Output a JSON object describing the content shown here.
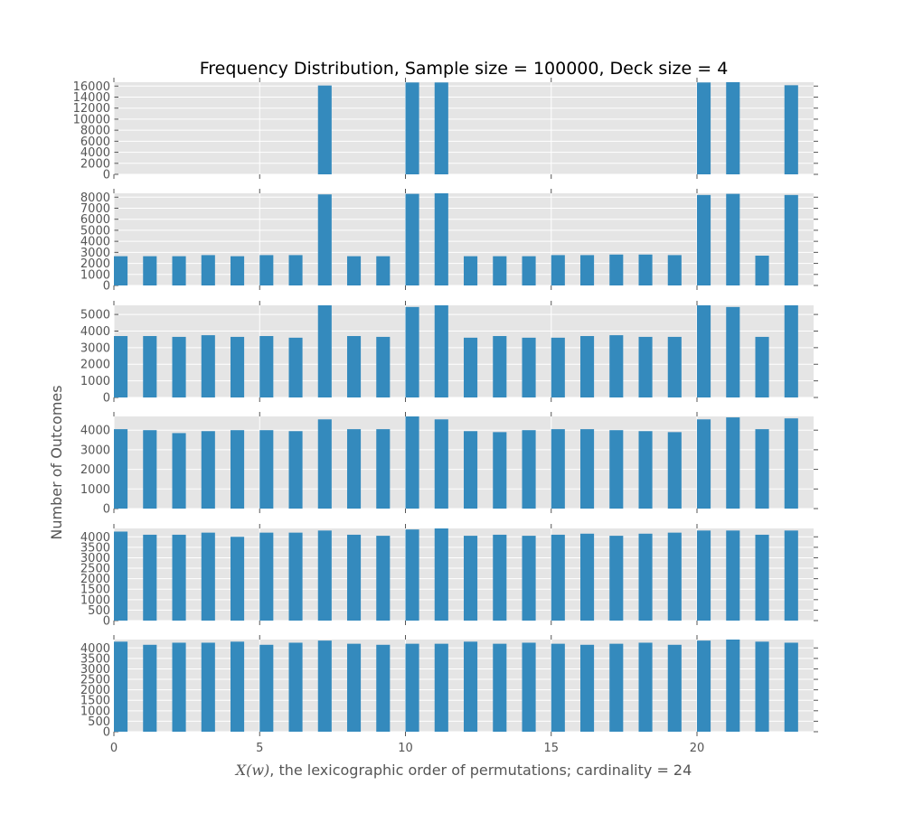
{
  "chart_data": {
    "type": "bar",
    "title": "Frequency Distribution, Sample size = 100000, Deck size = 4",
    "ylabel": "Number of Outcomes",
    "xlabel_math": "X(w)",
    "xlabel_rest": ", the lexicographic order of permutations; cardinality = 24",
    "x": [
      0,
      1,
      2,
      3,
      4,
      5,
      6,
      7,
      8,
      9,
      10,
      11,
      12,
      13,
      14,
      15,
      16,
      17,
      18,
      19,
      20,
      21,
      22,
      23
    ],
    "xlim": [
      0,
      24
    ],
    "xticks": [
      0,
      5,
      10,
      15,
      20
    ],
    "grid": true,
    "colors": {
      "bar": "#348ABD",
      "panel_bg": "#E5E5E5",
      "grid": "#ffffff"
    },
    "panels": [
      {
        "ylim": [
          0,
          16700
        ],
        "yticks": [
          0,
          2000,
          4000,
          6000,
          8000,
          10000,
          12000,
          14000,
          16000
        ],
        "values": [
          0,
          0,
          0,
          0,
          0,
          0,
          0,
          16100,
          0,
          0,
          16650,
          16650,
          0,
          0,
          0,
          0,
          0,
          0,
          0,
          0,
          16650,
          16700,
          0,
          16150
        ]
      },
      {
        "ylim": [
          0,
          8350
        ],
        "yticks": [
          0,
          1000,
          2000,
          3000,
          4000,
          5000,
          6000,
          7000,
          8000
        ],
        "values": [
          2650,
          2650,
          2650,
          2750,
          2650,
          2750,
          2750,
          8250,
          2650,
          2650,
          8300,
          8350,
          2650,
          2650,
          2650,
          2750,
          2750,
          2800,
          2800,
          2750,
          8200,
          8300,
          2700,
          8200
        ]
      },
      {
        "ylim": [
          0,
          5550
        ],
        "yticks": [
          0,
          1000,
          2000,
          3000,
          4000,
          5000
        ],
        "values": [
          3700,
          3700,
          3650,
          3750,
          3650,
          3700,
          3600,
          5550,
          3700,
          3650,
          5450,
          5550,
          3600,
          3700,
          3600,
          3600,
          3700,
          3750,
          3650,
          3650,
          5550,
          5450,
          3650,
          5550
        ]
      },
      {
        "ylim": [
          0,
          4700
        ],
        "yticks": [
          0,
          1000,
          2000,
          3000,
          4000
        ],
        "values": [
          4050,
          4000,
          3850,
          3950,
          4000,
          4000,
          3950,
          4550,
          4050,
          4050,
          4700,
          4550,
          3950,
          3900,
          4000,
          4050,
          4050,
          4000,
          3950,
          3900,
          4550,
          4650,
          4050,
          4600
        ]
      },
      {
        "ylim": [
          0,
          4400
        ],
        "yticks": [
          0,
          500,
          1000,
          1500,
          2000,
          2500,
          3000,
          3500,
          4000
        ],
        "values": [
          4250,
          4100,
          4100,
          4200,
          4000,
          4200,
          4200,
          4300,
          4100,
          4050,
          4350,
          4400,
          4050,
          4100,
          4050,
          4100,
          4150,
          4050,
          4150,
          4200,
          4300,
          4300,
          4100,
          4300
        ]
      },
      {
        "ylim": [
          0,
          4400
        ],
        "yticks": [
          0,
          500,
          1000,
          1500,
          2000,
          2500,
          3000,
          3500,
          4000
        ],
        "values": [
          4300,
          4150,
          4250,
          4250,
          4300,
          4150,
          4250,
          4350,
          4200,
          4150,
          4200,
          4200,
          4300,
          4200,
          4250,
          4200,
          4150,
          4200,
          4250,
          4150,
          4350,
          4400,
          4300,
          4250
        ]
      }
    ]
  }
}
